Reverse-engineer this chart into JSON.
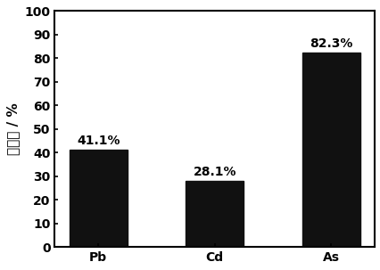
{
  "categories": [
    "Pb",
    "Cd",
    "As"
  ],
  "values": [
    41.1,
    28.1,
    82.3
  ],
  "bar_color": "#111111",
  "bar_labels": [
    "41.1%",
    "28.1%",
    "82.3%"
  ],
  "ylabel": "锑化率 / %",
  "ylim": [
    0,
    100
  ],
  "yticks": [
    0,
    10,
    20,
    30,
    40,
    50,
    60,
    70,
    80,
    90,
    100
  ],
  "label_fontsize": 10,
  "tick_fontsize": 10,
  "ylabel_fontsize": 11,
  "bar_width": 0.5,
  "background_color": "#ffffff"
}
